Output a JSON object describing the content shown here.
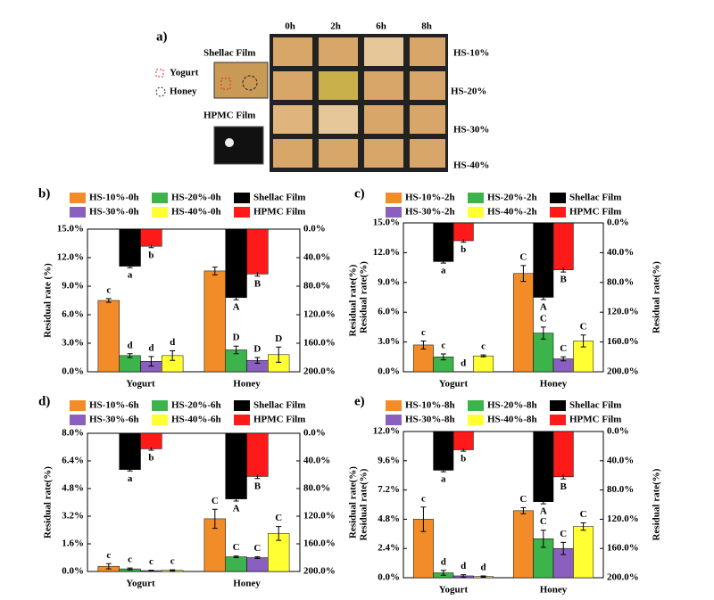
{
  "panel_a": {
    "label": "a)",
    "times": [
      "0h",
      "2h",
      "6h",
      "8h"
    ],
    "rows": [
      "HS-10%",
      "HS-20%",
      "HS-30%",
      "HS-40%"
    ],
    "shellac": "Shellac Film",
    "yogurt": "Yogurt",
    "honey": "Honey",
    "hpmc": "HPMC Film"
  },
  "chart_data": [
    {
      "type": "bar",
      "panel_label": "b)",
      "categories": [
        "Yogurt",
        "Honey"
      ],
      "y_label": "Residual rate (%)",
      "y2_label": "Residual rate(%)",
      "ylim": [
        0,
        15
      ],
      "yticks": [
        {
          "value": 0,
          "label": "0.0%"
        },
        {
          "value": 3,
          "label": "3.0%"
        },
        {
          "value": 6,
          "label": "6.0%"
        },
        {
          "value": 9,
          "label": "9.0%"
        },
        {
          "value": 12,
          "label": "12.0%"
        },
        {
          "value": 15,
          "label": "15.0%"
        }
      ],
      "y2lim": [
        0,
        200
      ],
      "y2_reversed": true,
      "y2ticks": [
        {
          "value": 0,
          "label": "0.0%"
        },
        {
          "value": 40,
          "label": "40.0%"
        },
        {
          "value": 80,
          "label": "80.0%"
        },
        {
          "value": 120,
          "label": "120.0%"
        },
        {
          "value": 160,
          "label": "160.0%"
        },
        {
          "value": 200,
          "label": "200.0%"
        }
      ],
      "series": [
        {
          "name": "HS-10%-0h",
          "color": "#f28c28",
          "values": [
            7.5,
            10.6
          ],
          "errors": [
            0.2,
            0.4
          ],
          "labels": [
            "c",
            null
          ]
        },
        {
          "name": "HS-20%-0h",
          "color": "#3cb44b",
          "values": [
            1.7,
            2.3
          ],
          "errors": [
            0.2,
            0.4
          ],
          "labels": [
            "d",
            "D"
          ]
        },
        {
          "name": "HS-30%-0h",
          "color": "#8b5fbf",
          "values": [
            1.1,
            1.2
          ],
          "errors": [
            0.5,
            0.3
          ],
          "labels": [
            "d",
            "D"
          ]
        },
        {
          "name": "HS-40%-0h",
          "color": "#ffff33",
          "values": [
            1.7,
            1.8
          ],
          "errors": [
            0.5,
            0.8
          ],
          "labels": [
            "d",
            "D"
          ]
        },
        {
          "name": "Shellac Film",
          "color": "#000000",
          "axis": "y2",
          "values": [
            52,
            96
          ],
          "errors": [
            2,
            3
          ],
          "labels": [
            "a",
            "A"
          ]
        },
        {
          "name": "HPMC Film",
          "color": "#ff1a1a",
          "axis": "y2",
          "values": [
            24,
            63
          ],
          "errors": [
            2,
            3
          ],
          "labels": [
            "b",
            "B"
          ]
        }
      ]
    },
    {
      "type": "bar",
      "panel_label": "c)",
      "categories": [
        "Yogurt",
        "Honey"
      ],
      "y_label": "Residual rate(%)",
      "y2_label": "Residual rate(%)",
      "ylim": [
        0,
        15
      ],
      "yticks": [
        {
          "value": 0,
          "label": "0.0%"
        },
        {
          "value": 3,
          "label": "3.0%"
        },
        {
          "value": 6,
          "label": "6.0%"
        },
        {
          "value": 9,
          "label": "9.0%"
        },
        {
          "value": 12,
          "label": "12.0%"
        },
        {
          "value": 15,
          "label": "15.0%"
        }
      ],
      "y2lim": [
        0,
        200
      ],
      "y2_reversed": true,
      "y2ticks": [
        {
          "value": 0,
          "label": "0.0%"
        },
        {
          "value": 40,
          "label": "40.0%"
        },
        {
          "value": 80,
          "label": "80.0%"
        },
        {
          "value": 120,
          "label": "120.0%"
        },
        {
          "value": 160,
          "label": "160.0%"
        },
        {
          "value": 200,
          "label": "200.0%"
        }
      ],
      "series": [
        {
          "name": "HS-10%-2h",
          "color": "#f28c28",
          "values": [
            2.7,
            9.9
          ],
          "errors": [
            0.4,
            0.8
          ],
          "labels": [
            "c",
            "C"
          ]
        },
        {
          "name": "HS-20%-2h",
          "color": "#3cb44b",
          "values": [
            1.5,
            3.9
          ],
          "errors": [
            0.3,
            0.6
          ],
          "labels": [
            "c",
            "C"
          ]
        },
        {
          "name": "HS-30%-2h",
          "color": "#8b5fbf",
          "values": [
            0,
            1.3
          ],
          "errors": [
            0,
            0.2
          ],
          "labels": [
            "d",
            "C"
          ]
        },
        {
          "name": "HS-40%-2h",
          "color": "#ffff33",
          "values": [
            1.6,
            3.1
          ],
          "errors": [
            0.1,
            0.6
          ],
          "labels": [
            "c",
            "C"
          ]
        },
        {
          "name": "Shellac Film",
          "color": "#000000",
          "axis": "y2",
          "values": [
            52,
            100
          ],
          "errors": [
            2,
            3
          ],
          "labels": [
            "a",
            "A"
          ]
        },
        {
          "name": "HPMC Film",
          "color": "#ff1a1a",
          "axis": "y2",
          "values": [
            24,
            63
          ],
          "errors": [
            2,
            3
          ],
          "labels": [
            "b",
            "B"
          ]
        }
      ]
    },
    {
      "type": "bar",
      "panel_label": "d)",
      "categories": [
        "Yogurt",
        "Honey"
      ],
      "y_label": "Residual rate(%)",
      "y2_label": "Residual rate(%)",
      "ylim": [
        0,
        8
      ],
      "yticks": [
        {
          "value": 0,
          "label": "0.0%"
        },
        {
          "value": 1.6,
          "label": "1.6%"
        },
        {
          "value": 3.2,
          "label": "3.2%"
        },
        {
          "value": 4.8,
          "label": "4.8%"
        },
        {
          "value": 6.4,
          "label": "6.4%"
        },
        {
          "value": 8,
          "label": "8.0%"
        }
      ],
      "y2lim": [
        0,
        200
      ],
      "y2_reversed": true,
      "y2ticks": [
        {
          "value": 0,
          "label": "0.0%"
        },
        {
          "value": 40,
          "label": "40.0%"
        },
        {
          "value": 80,
          "label": "80.0%"
        },
        {
          "value": 120,
          "label": "120.0%"
        },
        {
          "value": 160,
          "label": "160.0%"
        },
        {
          "value": 200,
          "label": "200.0%"
        }
      ],
      "series": [
        {
          "name": "HS-10%-6h",
          "color": "#f28c28",
          "values": [
            0.3,
            3.05
          ],
          "errors": [
            0.15,
            0.55
          ],
          "labels": [
            "c",
            "C"
          ]
        },
        {
          "name": "HS-20%-6h",
          "color": "#3cb44b",
          "values": [
            0.15,
            0.85
          ],
          "errors": [
            0.05,
            0.05
          ],
          "labels": [
            "c",
            "C"
          ]
        },
        {
          "name": "HS-30%-6h",
          "color": "#8b5fbf",
          "values": [
            0.05,
            0.8
          ],
          "errors": [
            0.02,
            0.05
          ],
          "labels": [
            "c",
            "C"
          ]
        },
        {
          "name": "HS-40%-6h",
          "color": "#ffff33",
          "values": [
            0.07,
            2.2
          ],
          "errors": [
            0.03,
            0.4
          ],
          "labels": [
            "c",
            "C"
          ]
        },
        {
          "name": "Shellac Film",
          "color": "#000000",
          "axis": "y2",
          "values": [
            52.5,
            95
          ],
          "errors": [
            2,
            3
          ],
          "labels": [
            "a",
            "A"
          ]
        },
        {
          "name": "HPMC Film",
          "color": "#ff1a1a",
          "axis": "y2",
          "values": [
            22.5,
            62.5
          ],
          "errors": [
            2,
            3
          ],
          "labels": [
            "b",
            "B"
          ]
        }
      ]
    },
    {
      "type": "bar",
      "panel_label": "e)",
      "categories": [
        "Yogurt",
        "Honey"
      ],
      "y_label": "Residual rate(%)",
      "y2_label": "Residual rate(%)",
      "ylim": [
        0,
        12
      ],
      "yticks": [
        {
          "value": 0,
          "label": "0.0%"
        },
        {
          "value": 2.4,
          "label": "2.4%"
        },
        {
          "value": 4.8,
          "label": "4.8%"
        },
        {
          "value": 7.2,
          "label": "7.2%"
        },
        {
          "value": 9.6,
          "label": "9.6%"
        },
        {
          "value": 12,
          "label": "12.0%"
        }
      ],
      "y2lim": [
        0,
        200
      ],
      "y2_reversed": true,
      "y2ticks": [
        {
          "value": 0,
          "label": "0.0%"
        },
        {
          "value": 40,
          "label": "40.0%"
        },
        {
          "value": 80,
          "label": "80.0%"
        },
        {
          "value": 120,
          "label": "120.0%"
        },
        {
          "value": 160,
          "label": "160.0%"
        },
        {
          "value": 200,
          "label": "200.0%"
        }
      ],
      "series": [
        {
          "name": "HS-10%-8h",
          "color": "#f28c28",
          "values": [
            4.8,
            5.5
          ],
          "errors": [
            1.0,
            0.25
          ],
          "labels": [
            "c",
            "C"
          ]
        },
        {
          "name": "HS-20%-8h",
          "color": "#3cb44b",
          "values": [
            0.4,
            3.2
          ],
          "errors": [
            0.2,
            0.7
          ],
          "labels": [
            "d",
            "C"
          ]
        },
        {
          "name": "HS-30%-8h",
          "color": "#8b5fbf",
          "values": [
            0.15,
            2.4
          ],
          "errors": [
            0.1,
            0.5
          ],
          "labels": [
            "d",
            "C"
          ]
        },
        {
          "name": "HS-40%-8h",
          "color": "#ffff33",
          "values": [
            0.1,
            4.2
          ],
          "errors": [
            0.05,
            0.3
          ],
          "labels": [
            "d",
            "C"
          ]
        },
        {
          "name": "Shellac Film",
          "color": "#000000",
          "axis": "y2",
          "values": [
            53,
            96
          ],
          "errors": [
            2,
            3
          ],
          "labels": [
            "a",
            "A"
          ]
        },
        {
          "name": "HPMC Film",
          "color": "#ff1a1a",
          "axis": "y2",
          "values": [
            25,
            62
          ],
          "errors": [
            2,
            3
          ],
          "labels": [
            "b",
            "B"
          ]
        }
      ]
    }
  ]
}
